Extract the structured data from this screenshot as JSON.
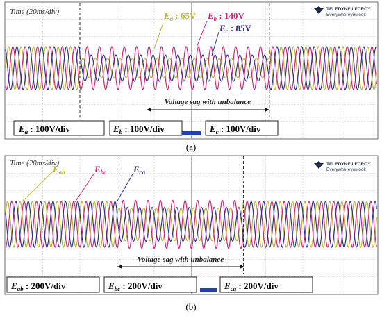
{
  "chart_data": [
    {
      "type": "line",
      "caption": "(a)",
      "time_label": "Time (20ms/div)",
      "sag_label": "Voltage sag with unbalance",
      "brand": {
        "line1": "TELEDYNE LECROY",
        "line2": "Everywhereyoulook"
      },
      "x_divisions": 10,
      "y_divisions": 8,
      "sag_window_div": [
        2.0,
        7.1
      ],
      "cycles_total": 30,
      "series": [
        {
          "name": "Ea",
          "sym": "E",
          "sub": "a",
          "color": "#b9b431",
          "phase_deg": 0,
          "normal_amp_div": 1.0,
          "sag_amp_div": 0.46,
          "sag_value": "65V",
          "scale": "100V/div"
        },
        {
          "name": "Eb",
          "sym": "E",
          "sub": "b",
          "color": "#cc2277",
          "phase_deg": -120,
          "normal_amp_div": 1.0,
          "sag_amp_div": 1.0,
          "sag_value": "140V",
          "scale": "100V/div"
        },
        {
          "name": "Ec",
          "sym": "E",
          "sub": "c",
          "color": "#2b2e8f",
          "phase_deg": 120,
          "normal_amp_div": 1.0,
          "sag_amp_div": 0.61,
          "sag_value": "85V",
          "scale": "100V/div"
        }
      ]
    },
    {
      "type": "line",
      "caption": "(b)",
      "time_label": "Time (20ms/div)",
      "sag_label": "Voltage sag with unbalance",
      "brand": {
        "line1": "TELEDYNE LECROY",
        "line2": "Everywhereyoulook"
      },
      "x_divisions": 10,
      "y_divisions": 8,
      "sag_window_div": [
        3.0,
        6.4
      ],
      "cycles_total": 30,
      "series": [
        {
          "name": "Eab",
          "sym": "E",
          "sub": "ab",
          "color": "#b9b431",
          "phase_deg": 30,
          "normal_amp_div": 1.0,
          "sag_amp_div": 0.72,
          "scale": "200V/div"
        },
        {
          "name": "Ebc",
          "sym": "E",
          "sub": "bc",
          "color": "#cc2277",
          "phase_deg": -90,
          "normal_amp_div": 1.0,
          "sag_amp_div": 1.05,
          "scale": "200V/div"
        },
        {
          "name": "Eca",
          "sym": "E",
          "sub": "ca",
          "color": "#2b2e8f",
          "phase_deg": 150,
          "normal_amp_div": 1.0,
          "sag_amp_div": 0.74,
          "scale": "200V/div"
        }
      ]
    }
  ]
}
